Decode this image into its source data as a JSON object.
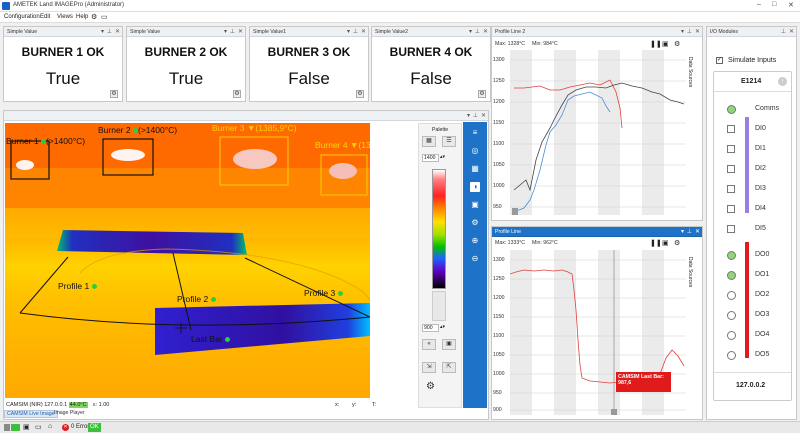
{
  "window": {
    "title": "AMETEK Land IMAGEPro (Administrator)"
  },
  "menu": [
    {
      "label": "Configuration"
    },
    {
      "label": "Edit"
    },
    {
      "label": "Views"
    },
    {
      "label": "Help"
    }
  ],
  "simple_values": [
    {
      "title": "Simple Value",
      "name": "BURNER 1 OK",
      "value": "True"
    },
    {
      "title": "Simple Value",
      "name": "BURNER 2 OK",
      "value": "True"
    },
    {
      "title": "Simple Value1",
      "name": "BURNER 3 OK",
      "value": "False"
    },
    {
      "title": "Simple Value2",
      "name": "BURNER 4 OK",
      "value": "False"
    }
  ],
  "thermal": {
    "labels": {
      "burner1": "Burner 1",
      "burner1_temp": "(>1400°C)",
      "burner2": "Burner 2",
      "burner2_temp": "(>1400°C)",
      "burner3": "Burner 3",
      "burner3_temp": "(1385,9°C)",
      "burner4": "Burner 4",
      "burner4_temp": "(13",
      "profile1": "Profile 1",
      "profile2": "Profile 2",
      "profile3": "Profile 3",
      "lastbar": "Last Bar"
    },
    "info_camera": "CAMSIM (NIR) 127.0.0.1",
    "info_temp": "44.0°C",
    "info_emis": "ε: 1.00",
    "info_x": "x:",
    "info_y": "y:",
    "info_t": "T:",
    "tab_live": "CAMSIM Live Image",
    "tab_player": "Image Player"
  },
  "palette": {
    "title": "Palette",
    "max": "1400",
    "min": "900"
  },
  "profile2": {
    "title": "Profile Line 2",
    "max_label": "Max: 1328°C",
    "min_label": "Min: 984°C",
    "side_label": "Data Sources",
    "yticks": [
      "1300",
      "1250",
      "1200",
      "1150",
      "1100",
      "1050",
      "1000",
      "950"
    ]
  },
  "profile1": {
    "title": "Profile Line",
    "max_label": "Max: 1333°C",
    "min_label": "Min: 962°C",
    "side_label": "Data Sources",
    "yticks": [
      "1300",
      "1250",
      "1200",
      "1150",
      "1100",
      "1050",
      "1000",
      "950",
      "900"
    ],
    "callout_line1": "CAMSIM Last Bar:",
    "callout_line2": "987,6"
  },
  "io": {
    "title": "I/O Modules",
    "simulate": "Simulate Inputs",
    "module": "E1214",
    "ip": "127.0.0.2",
    "rows": [
      {
        "label": "Comms",
        "type": "led",
        "state": "on"
      },
      {
        "label": "DI0",
        "type": "check",
        "state": "off"
      },
      {
        "label": "DI1",
        "type": "check",
        "state": "off"
      },
      {
        "label": "DI2",
        "type": "check",
        "state": "off"
      },
      {
        "label": "DI3",
        "type": "check",
        "state": "off"
      },
      {
        "label": "DI4",
        "type": "check",
        "state": "off"
      },
      {
        "label": "DI5",
        "type": "check",
        "state": "off"
      },
      {
        "label": "DO0",
        "type": "led",
        "state": "on"
      },
      {
        "label": "DO1",
        "type": "led",
        "state": "on"
      },
      {
        "label": "DO2",
        "type": "led",
        "state": "off"
      },
      {
        "label": "DO3",
        "type": "led",
        "state": "off"
      },
      {
        "label": "DO4",
        "type": "led",
        "state": "off"
      },
      {
        "label": "DO5",
        "type": "led",
        "state": "off"
      }
    ]
  },
  "status": {
    "error": "0 Error",
    "ok": "OK"
  },
  "colors": {
    "accent_blue": "#1e73c8",
    "led_green": "#8fd67a",
    "io_purple": "#9b7fe0",
    "io_red": "#e01b1b",
    "profile_red": "#e04040"
  }
}
